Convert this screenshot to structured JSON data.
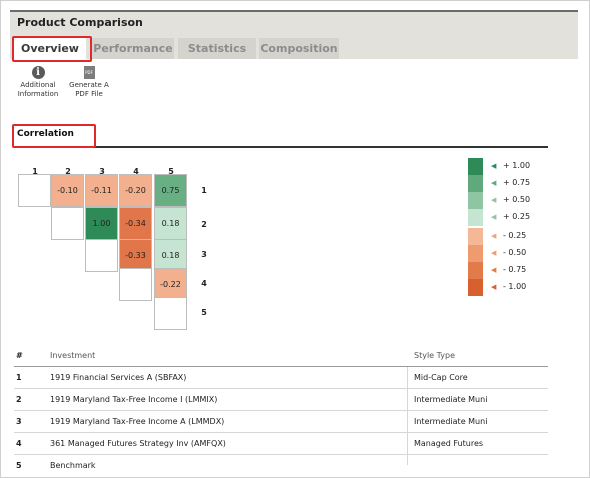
{
  "header": {
    "title": "Product Comparison"
  },
  "tabs": [
    {
      "label": "Overview",
      "active": true
    },
    {
      "label": "Performance",
      "active": false
    },
    {
      "label": "Statistics",
      "active": false
    },
    {
      "label": "Composition",
      "active": false
    }
  ],
  "toolbar": {
    "info_icon": "i",
    "info_line1": "Additional",
    "info_line2": "Information",
    "pdf_icon": "PDF",
    "pdf_line1": "Generate A",
    "pdf_line2": "PDF File"
  },
  "section": {
    "title": "Correlation"
  },
  "matrix": {
    "column_labels": [
      "1",
      "2",
      "3",
      "4",
      "5"
    ],
    "row_labels": [
      "1",
      "2",
      "3",
      "4",
      "5"
    ],
    "cells": [
      {
        "label": "",
        "value": null,
        "color": "#ffffff"
      },
      {
        "label": "-0.10",
        "value": -0.1,
        "color": "#f2b08e"
      },
      {
        "label": "-0.11",
        "value": -0.11,
        "color": "#f2b08e"
      },
      {
        "label": "-0.20",
        "value": -0.2,
        "color": "#f2b08e"
      },
      {
        "label": "0.75",
        "value": 0.75,
        "color": "#68b083"
      },
      {
        "label": "",
        "value": null,
        "color": "#ffffff"
      },
      {
        "label": "1.00",
        "value": 1.0,
        "color": "#2e8a56"
      },
      {
        "label": "-0.34",
        "value": -0.34,
        "color": "#e0764a"
      },
      {
        "label": "0.18",
        "value": 0.18,
        "color": "#c6e4d2"
      },
      {
        "label": "",
        "value": null,
        "color": "#ffffff"
      },
      {
        "label": "-0.33",
        "value": -0.33,
        "color": "#e0764a"
      },
      {
        "label": "0.18",
        "value": 0.18,
        "color": "#c6e4d2"
      },
      {
        "label": "",
        "value": null,
        "color": "#ffffff"
      },
      {
        "label": "-0.22",
        "value": -0.22,
        "color": "#f2b08e"
      },
      {
        "label": "",
        "value": null,
        "color": "#ffffff"
      }
    ]
  },
  "legend": [
    {
      "label": "+ 1.00",
      "color": "#2e8a56",
      "arrow_color": "#2e8a56"
    },
    {
      "label": "+ 0.75",
      "color": "#5fa97d",
      "arrow_color": "#5fa97d"
    },
    {
      "label": "+ 0.50",
      "color": "#8ec6a3",
      "arrow_color": "#8ec6a3"
    },
    {
      "label": "+ 0.25",
      "color": "#c6e4d2",
      "arrow_color": "#8ec6a3"
    },
    {
      "label": "- 0.25",
      "color": "#f4b896",
      "arrow_color": "#f0a47c"
    },
    {
      "label": "- 0.50",
      "color": "#ee9b70",
      "arrow_color": "#ee9b70"
    },
    {
      "label": "- 0.75",
      "color": "#e37a4c",
      "arrow_color": "#e37a4c"
    },
    {
      "label": "- 1.00",
      "color": "#d8602f",
      "arrow_color": "#d8602f"
    }
  ],
  "legend_arrow": "◀",
  "table": {
    "headers": [
      "#",
      "Investment",
      "Style Type"
    ],
    "rows": [
      [
        "1",
        "1919 Financial Services A (SBFAX)",
        "Mid-Cap Core"
      ],
      [
        "2",
        "1919 Maryland Tax-Free Income I (LMMIX)",
        "Intermediate Muni"
      ],
      [
        "3",
        "1919 Maryland Tax-Free Income A (LMMDX)",
        "Intermediate Muni"
      ],
      [
        "4",
        "361 Managed Futures Strategy Inv (AMFQX)",
        "Managed Futures"
      ],
      [
        "5",
        "Benchmark",
        ""
      ]
    ]
  }
}
